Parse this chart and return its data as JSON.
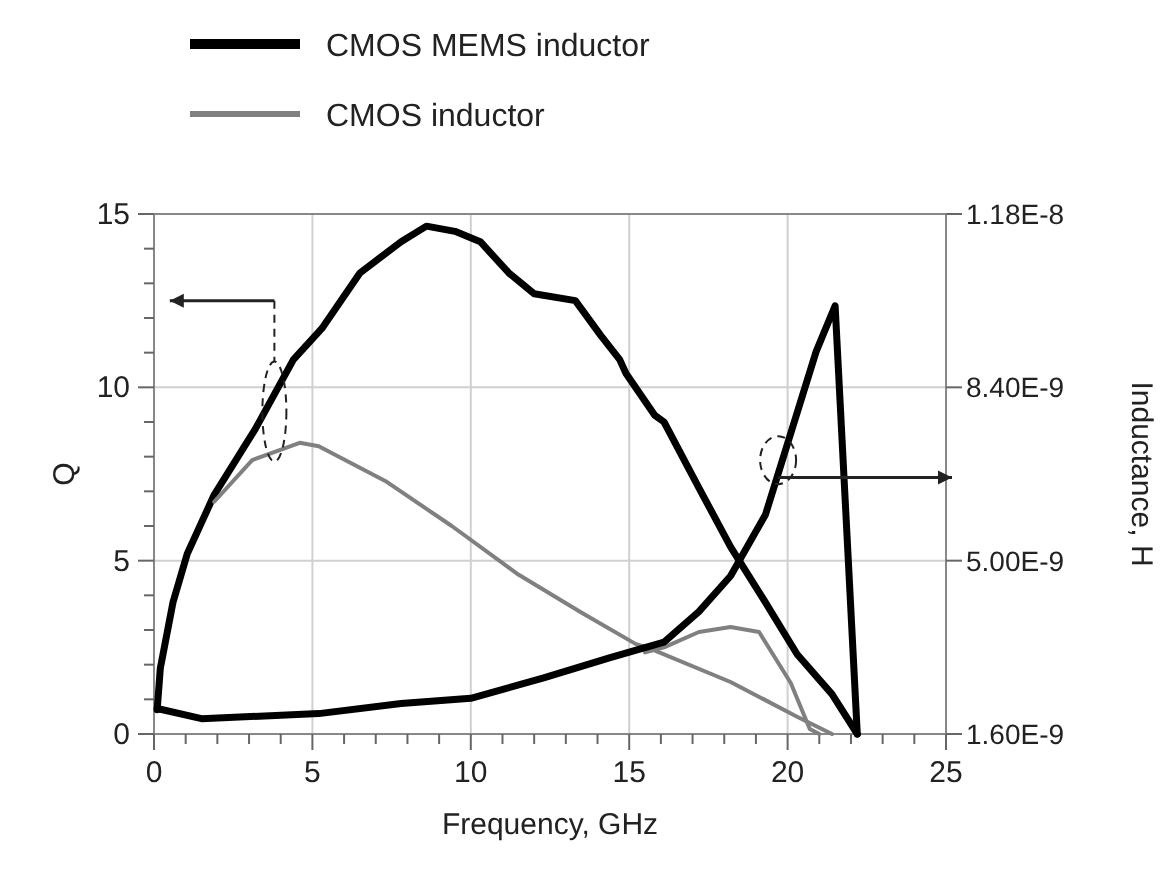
{
  "chart_data": {
    "type": "line",
    "xlabel": "Frequency, GHz",
    "ylabel": "Q",
    "y2label": "Inductance, H",
    "xlim": [
      0,
      25
    ],
    "xticks": [
      0,
      {
        "value": 1,
        "label": null
      },
      {
        "value": 2,
        "label": null
      },
      {
        "value": 3,
        "label": null
      },
      {
        "value": 4,
        "label": null
      },
      5,
      {
        "value": 6,
        "label": null
      },
      {
        "value": 7,
        "label": null
      },
      {
        "value": 8,
        "label": null
      },
      {
        "value": 9,
        "label": null
      },
      10,
      {
        "value": 11,
        "label": null
      },
      {
        "value": 12,
        "label": null
      },
      {
        "value": 13,
        "label": null
      },
      {
        "value": 14,
        "label": null
      },
      15,
      {
        "value": 16,
        "label": null
      },
      {
        "value": 17,
        "label": null
      },
      {
        "value": 18,
        "label": null
      },
      {
        "value": 19,
        "label": null
      },
      20,
      {
        "value": 21,
        "label": null
      },
      {
        "value": 22,
        "label": null
      },
      {
        "value": 23,
        "label": null
      },
      {
        "value": 24,
        "label": null
      },
      25
    ],
    "ylim": [
      0,
      15
    ],
    "yticks": [
      0,
      {
        "value": 1,
        "label": null
      },
      {
        "value": 2,
        "label": null
      },
      {
        "value": 3,
        "label": null
      },
      {
        "value": 4,
        "label": null
      },
      5,
      {
        "value": 6,
        "label": null
      },
      {
        "value": 7,
        "label": null
      },
      {
        "value": 8,
        "label": null
      },
      {
        "value": 9,
        "label": null
      },
      10,
      {
        "value": 11,
        "label": null
      },
      {
        "value": 12,
        "label": null
      },
      {
        "value": 13,
        "label": null
      },
      {
        "value": 14,
        "label": null
      },
      15
    ],
    "y2lim": [
      1.6e-09,
      1.18e-08
    ],
    "y2ticks": [
      {
        "value": 1.6e-09,
        "label": "1.60E-9"
      },
      {
        "value": 5e-09,
        "label": "5.00E-9"
      },
      {
        "value": 8.4e-09,
        "label": "8.40E-9"
      },
      {
        "value": 1.18e-08,
        "label": "1.18E-8"
      }
    ],
    "grid": true,
    "legend": "top",
    "line_style": "solid",
    "marker": "none",
    "series": [
      {
        "name": "CMOS MEMS inductor",
        "color": "#000000",
        "x": [
          0.1,
          0.2,
          0.6,
          1.05,
          1.9,
          3.2,
          4.4,
          5.3,
          6.5,
          7.8,
          8.6,
          9.5,
          10.3,
          11.2,
          12,
          13.3,
          14.1,
          14.7,
          14.9,
          15.8,
          16.1,
          17.2,
          18.2,
          19.3,
          20.3,
          21.4,
          22.2
        ],
        "values": [
          0.7,
          1.9,
          3.8,
          5.2,
          6.9,
          8.8,
          10.8,
          11.7,
          13.3,
          14.2,
          14.65,
          14.5,
          14.2,
          13.3,
          12.7,
          12.5,
          11.5,
          10.8,
          10.4,
          9.2,
          9.0,
          7.1,
          5.4,
          3.8,
          2.3,
          1.15,
          0
        ]
      },
      {
        "name": "CMOS inductor",
        "color": "#808080",
        "x": [
          1.9,
          3.1,
          4.6,
          5.2,
          7.3,
          9.4,
          11.5,
          13.5,
          15.2,
          15.7,
          18.2,
          20.3,
          21.4
        ],
        "values": [
          6.7,
          7.9,
          8.4,
          8.3,
          7.3,
          6.0,
          4.6,
          3.5,
          2.6,
          2.45,
          1.5,
          0.5,
          0
        ]
      },
      {
        "color": "#808080",
        "axis": "y2",
        "x": [
          15.5,
          16.1,
          17.2,
          18.2,
          19.1,
          20.1,
          20.7,
          21
        ],
        "values": [
          3.2e-09,
          3.3e-09,
          3.6e-09,
          3.7e-09,
          3.6e-09,
          2.6e-09,
          1.7e-09,
          1.6e-09
        ]
      },
      {
        "color": "#000000",
        "axis": "y2",
        "x": [
          0.1,
          1.5,
          5.2,
          7.8,
          10,
          12.3,
          14.4,
          16.1,
          17.2,
          18.2,
          19.3,
          20.1,
          20.9,
          21.5,
          22.2
        ],
        "values": [
          2.1e-09,
          1.9e-09,
          2e-09,
          2.2e-09,
          2.3e-09,
          2.7e-09,
          3.1e-09,
          3.4e-09,
          4e-09,
          4.7e-09,
          5.9e-09,
          7.5e-09,
          9.1e-09,
          1e-08,
          1.6e-09
        ]
      }
    ]
  }
}
